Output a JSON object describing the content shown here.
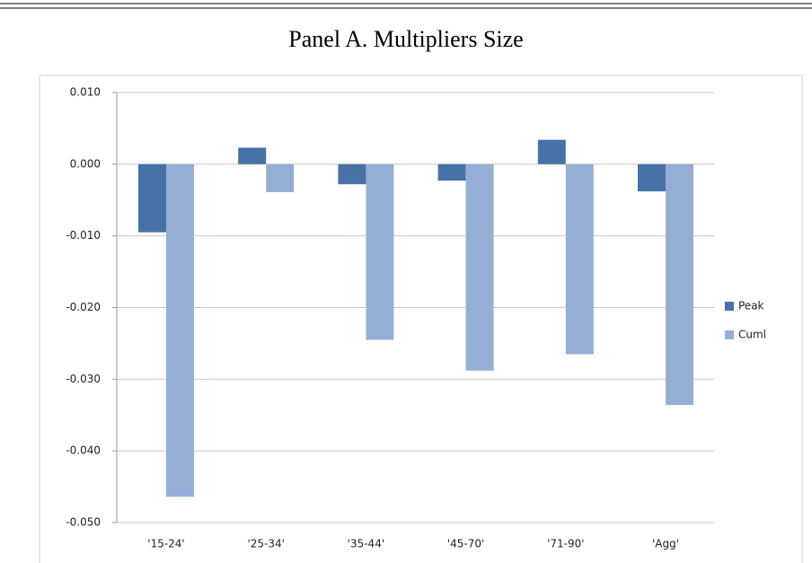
{
  "chart_data": {
    "type": "bar",
    "title": "Panel A. Multipliers Size",
    "categories": [
      "'15-24'",
      "'25-34'",
      "'35-44'",
      "'45-70'",
      "'71-90'",
      "'Agg'"
    ],
    "series": [
      {
        "name": "Peak",
        "color": "#4672a8",
        "values": [
          -0.0095,
          0.0023,
          -0.0028,
          -0.0023,
          0.0034,
          -0.0038
        ]
      },
      {
        "name": "Cuml",
        "color": "#95aed6",
        "values": [
          -0.0464,
          -0.0039,
          -0.0245,
          -0.0288,
          -0.0265,
          -0.0336
        ]
      }
    ],
    "ylim": [
      -0.05,
      0.01
    ],
    "yticks": [
      {
        "value": -0.05,
        "label": "-0.050"
      },
      {
        "value": -0.04,
        "label": "-0.040"
      },
      {
        "value": -0.03,
        "label": "-0.030"
      },
      {
        "value": -0.02,
        "label": "-0.020"
      },
      {
        "value": -0.01,
        "label": "-0.010"
      },
      {
        "value": 0,
        "label": "0.000"
      },
      {
        "value": 0.01,
        "label": "0.010"
      }
    ],
    "grid": true,
    "legend": "right"
  }
}
